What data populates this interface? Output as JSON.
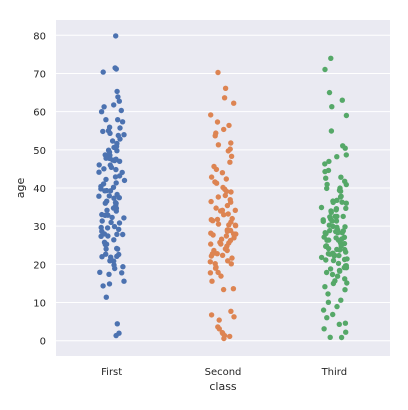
{
  "chart_data": {
    "type": "scatter",
    "subtype": "strip",
    "xlabel": "class",
    "ylabel": "age",
    "categories": [
      "First",
      "Second",
      "Third"
    ],
    "yticks": [
      0,
      10,
      20,
      30,
      40,
      50,
      60,
      70,
      80
    ],
    "ylim": [
      -4,
      84
    ],
    "grid": true,
    "background": "#eaeaf2",
    "gridColor": "#ffffff",
    "colors": [
      "#4c72b0",
      "#dd8452",
      "#55a868"
    ],
    "series": [
      {
        "category": "First",
        "values": [
          80,
          71,
          71,
          70,
          65,
          64,
          63,
          62,
          61,
          60,
          60,
          58,
          58,
          57,
          56,
          56,
          55,
          55,
          54,
          54,
          54,
          53,
          52,
          52,
          51,
          51,
          50,
          50,
          49,
          49,
          49,
          48,
          48,
          48,
          47,
          47,
          47,
          46,
          46,
          45,
          45,
          45,
          44,
          44,
          43,
          43,
          42,
          42,
          41,
          41,
          40,
          40,
          40,
          39,
          39,
          39,
          38,
          38,
          38,
          37,
          37,
          37,
          36,
          36,
          36,
          35,
          35,
          35,
          34,
          34,
          33,
          33,
          33,
          32,
          32,
          31,
          31,
          31,
          30,
          30,
          30,
          29,
          29,
          28,
          28,
          28,
          27,
          27,
          26,
          26,
          25,
          25,
          24,
          24,
          24,
          23,
          23,
          22,
          22,
          22,
          21,
          21,
          20,
          19,
          19,
          18,
          18,
          17,
          16,
          15,
          14,
          11,
          4,
          2,
          1
        ]
      },
      {
        "category": "Second",
        "values": [
          70,
          66,
          64,
          62,
          59,
          57,
          56,
          55,
          54,
          54,
          52,
          51,
          50,
          50,
          48,
          47,
          46,
          45,
          44,
          43,
          42,
          42,
          41,
          40,
          40,
          39,
          39,
          38,
          38,
          37,
          36,
          36,
          35,
          35,
          34,
          34,
          34,
          33,
          33,
          32,
          32,
          32,
          31,
          31,
          31,
          30,
          30,
          30,
          29,
          29,
          29,
          28,
          28,
          28,
          28,
          27,
          27,
          27,
          26,
          26,
          26,
          25,
          25,
          25,
          24,
          24,
          24,
          23,
          23,
          23,
          22,
          22,
          22,
          21,
          21,
          20,
          20,
          19,
          19,
          18,
          18,
          17,
          16,
          14,
          13,
          8,
          7,
          6,
          5,
          4,
          3,
          2,
          2,
          1,
          1,
          0.8
        ]
      },
      {
        "category": "Third",
        "values": [
          74,
          71,
          65,
          63,
          61,
          59,
          55,
          51,
          50,
          49,
          48,
          47,
          46,
          45,
          44,
          43,
          43,
          42,
          41,
          41,
          40,
          40,
          39,
          39,
          38,
          38,
          37,
          37,
          36,
          36,
          36,
          35,
          35,
          35,
          34,
          34,
          34,
          33,
          33,
          33,
          32,
          32,
          32,
          31,
          31,
          31,
          30,
          30,
          30,
          30,
          29,
          29,
          29,
          29,
          28,
          28,
          28,
          28,
          27,
          27,
          27,
          27,
          26,
          26,
          26,
          26,
          25,
          25,
          25,
          25,
          24,
          24,
          24,
          24,
          23,
          23,
          23,
          23,
          22,
          22,
          22,
          22,
          21,
          21,
          21,
          21,
          20,
          20,
          20,
          19,
          19,
          19,
          18,
          18,
          18,
          17,
          17,
          16,
          16,
          15,
          15,
          14,
          13,
          12,
          11,
          10,
          9,
          8,
          7,
          6,
          5,
          4,
          3,
          2,
          1,
          1
        ]
      }
    ]
  }
}
